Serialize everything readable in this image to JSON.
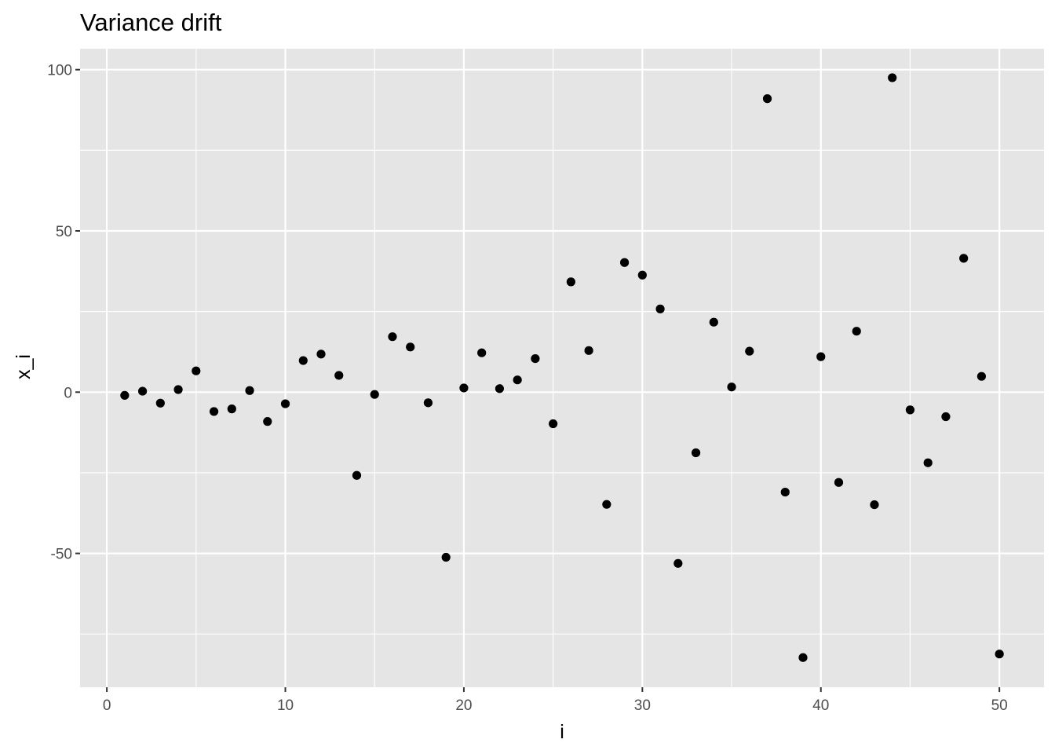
{
  "chart_data": {
    "type": "scatter",
    "title": "Variance drift",
    "xlabel": "i",
    "ylabel": "x_i",
    "xlim": [
      -1.5,
      52.5
    ],
    "ylim": [
      -91.5,
      106.5
    ],
    "x_ticks": [
      0,
      10,
      20,
      30,
      40,
      50
    ],
    "y_ticks": [
      -50,
      0,
      50,
      100
    ],
    "x_tick_labels": [
      "0",
      "10",
      "20",
      "30",
      "40",
      "50"
    ],
    "y_tick_labels": [
      "-50",
      "0",
      "50",
      "100"
    ],
    "grid": true,
    "panel_background": "#e5e5e5",
    "grid_color": "#ffffff",
    "point_color": "#000000",
    "series": [
      {
        "x": [
          1,
          2,
          3,
          4,
          5,
          6,
          7,
          8,
          9,
          10,
          11,
          12,
          13,
          14,
          15,
          16,
          17,
          18,
          19,
          20,
          21,
          22,
          23,
          24,
          25,
          26,
          27,
          28,
          29,
          30,
          31,
          32,
          33,
          34,
          35,
          36,
          37,
          38,
          39,
          40,
          41,
          42,
          43,
          44,
          45,
          46,
          47,
          48,
          49,
          50
        ],
        "y": [
          -1.0,
          0.3,
          -3.4,
          0.8,
          6.6,
          -6.0,
          -5.2,
          0.5,
          -9.1,
          -3.6,
          9.8,
          11.8,
          5.2,
          -25.8,
          -0.7,
          17.2,
          14.0,
          -3.3,
          -51.2,
          1.3,
          12.2,
          1.1,
          3.8,
          10.4,
          -9.8,
          34.2,
          12.9,
          -34.8,
          40.2,
          36.3,
          25.8,
          -53.1,
          -18.8,
          21.7,
          1.6,
          12.7,
          91.0,
          -31.0,
          -82.3,
          11.0,
          -28.0,
          18.9,
          -34.9,
          97.5,
          -5.5,
          -21.9,
          -7.6,
          41.5,
          4.9,
          -81.2
        ]
      }
    ]
  }
}
